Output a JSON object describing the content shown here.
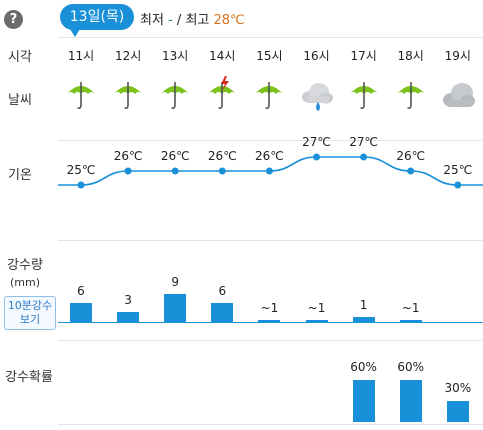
{
  "header": {
    "help_icon": "?",
    "date_label": "13일(목)",
    "min_label": "최저",
    "min_value": "-",
    "slash": "/",
    "max_label": "최고",
    "max_value": "28℃"
  },
  "row_labels": {
    "time": "시각",
    "weather": "날씨",
    "temperature": "기온",
    "precip_amount": "강수량",
    "precip_unit": "(mm)",
    "precip_button_line1": "10분강수",
    "precip_button_line2": "보기",
    "precip_prob": "강수확률"
  },
  "hours": [
    "11시",
    "12시",
    "13시",
    "14시",
    "15시",
    "16시",
    "17시",
    "18시",
    "19시"
  ],
  "weather_icons": [
    "umbrella-icon",
    "umbrella-icon",
    "umbrella-icon",
    "umbrella-lightning-icon",
    "umbrella-icon",
    "cloud-rain-icon",
    "umbrella-icon",
    "umbrella-icon",
    "cloud-icon"
  ],
  "temperatures": [
    "25℃",
    "26℃",
    "26℃",
    "26℃",
    "26℃",
    "27℃",
    "27℃",
    "26℃",
    "25℃"
  ],
  "precipitation": [
    "6",
    "3",
    "9",
    "6",
    "~1",
    "~1",
    "1",
    "~1",
    ""
  ],
  "precip_probability": [
    "",
    "",
    "",
    "",
    "",
    "",
    "60%",
    "60%",
    "30%"
  ],
  "chart_data": {
    "type": "bar",
    "categories": [
      "11시",
      "12시",
      "13시",
      "14시",
      "15시",
      "16시",
      "17시",
      "18시",
      "19시"
    ],
    "temperature": [
      25,
      26,
      26,
      26,
      26,
      27,
      27,
      26,
      25
    ],
    "precipitation_mm": [
      6,
      3,
      9,
      6,
      0.5,
      0.5,
      1,
      0.5,
      0
    ],
    "precip_probability_pct": [
      0,
      0,
      0,
      0,
      0,
      0,
      60,
      60,
      30
    ]
  },
  "colors": {
    "accent": "#1a90d9",
    "umbrella": "#7cc11c",
    "max_temp": "#d7731c"
  }
}
